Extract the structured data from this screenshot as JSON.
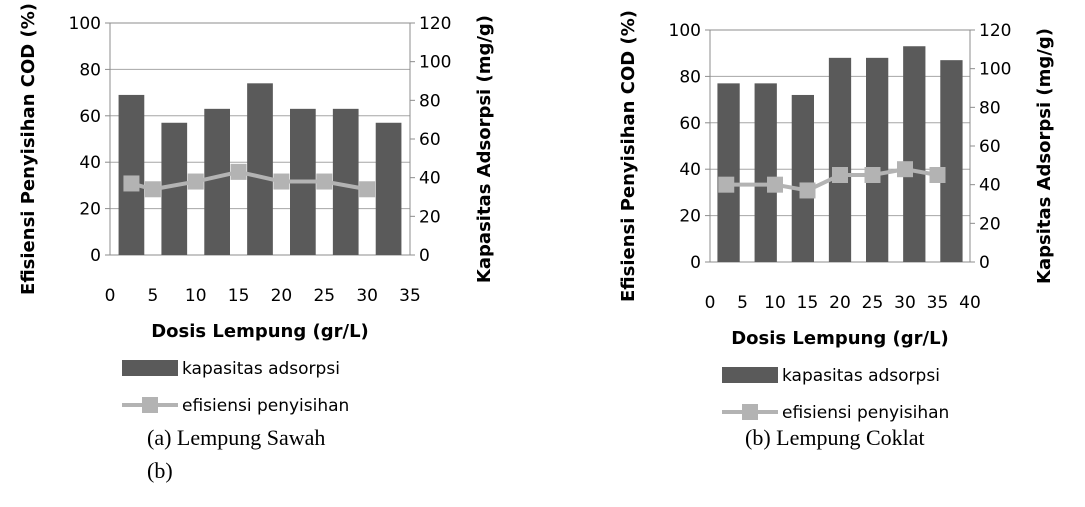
{
  "chart_data": [
    {
      "type": "bar",
      "title": "",
      "xlabel": "Dosis Lempung (gr/L)",
      "ylabel": "Efisiensi Penyisihan COD (%)",
      "y2label": "Kapasitas Adsorpsi (mg/g)",
      "x_ticks": [
        "0",
        "5",
        "10",
        "15",
        "20",
        "25",
        "30",
        "35"
      ],
      "xlim": [
        0,
        35
      ],
      "ylim": [
        0,
        100
      ],
      "y_ticks": [
        "0",
        "20",
        "40",
        "60",
        "80",
        "100"
      ],
      "y2lim": [
        0,
        120
      ],
      "y2_ticks": [
        "0",
        "20",
        "40",
        "60",
        "80",
        "100",
        "120"
      ],
      "categories": [
        "1",
        "2",
        "3",
        "4",
        "5",
        "6",
        "7"
      ],
      "grid": true,
      "legend_placement": "bottom",
      "series": [
        {
          "name": "kapasitas adsorpsi",
          "kind": "bar",
          "axis": "left",
          "color": "#5a5a5a",
          "values": [
            69,
            57,
            63,
            74,
            63,
            63,
            57
          ]
        },
        {
          "name": "efisiensi penyisihan",
          "kind": "line",
          "axis": "right",
          "color": "#b3b3b3",
          "x": [
            2.5,
            5,
            10,
            15,
            20,
            25,
            30
          ],
          "values": [
            37,
            34,
            38,
            43,
            38,
            38,
            34
          ]
        }
      ],
      "caption": "(a)  Lempung Sawah",
      "caption2": "(b)"
    },
    {
      "type": "bar",
      "title": "",
      "xlabel": "Dosis Lempung (gr/L)",
      "ylabel": "Efisiensi Penyisihan COD (%)",
      "y2label": "Kapsitas Adsorpsi (mg/g)",
      "x_ticks": [
        "0",
        "5",
        "10",
        "15",
        "20",
        "25",
        "30",
        "35",
        "40"
      ],
      "xlim": [
        0,
        40
      ],
      "ylim": [
        0,
        100
      ],
      "y_ticks": [
        "0",
        "20",
        "40",
        "60",
        "80",
        "100"
      ],
      "y2lim": [
        0,
        120
      ],
      "y2_ticks": [
        "0",
        "20",
        "40",
        "60",
        "80",
        "100",
        "120"
      ],
      "categories": [
        "1",
        "2",
        "3",
        "4",
        "5",
        "6",
        "7"
      ],
      "grid": true,
      "legend_placement": "bottom",
      "series": [
        {
          "name": "kapasitas adsorpsi",
          "kind": "bar",
          "axis": "left",
          "color": "#5a5a5a",
          "values": [
            77,
            77,
            72,
            88,
            88,
            93,
            87
          ]
        },
        {
          "name": "efisiensi penyisihan",
          "kind": "line",
          "axis": "right",
          "color": "#b3b3b3",
          "x": [
            2.5,
            10,
            15,
            20,
            25,
            30,
            35
          ],
          "values": [
            40,
            40,
            37,
            45,
            45,
            48,
            45
          ]
        }
      ],
      "caption": "(b) Lempung Coklat"
    }
  ]
}
